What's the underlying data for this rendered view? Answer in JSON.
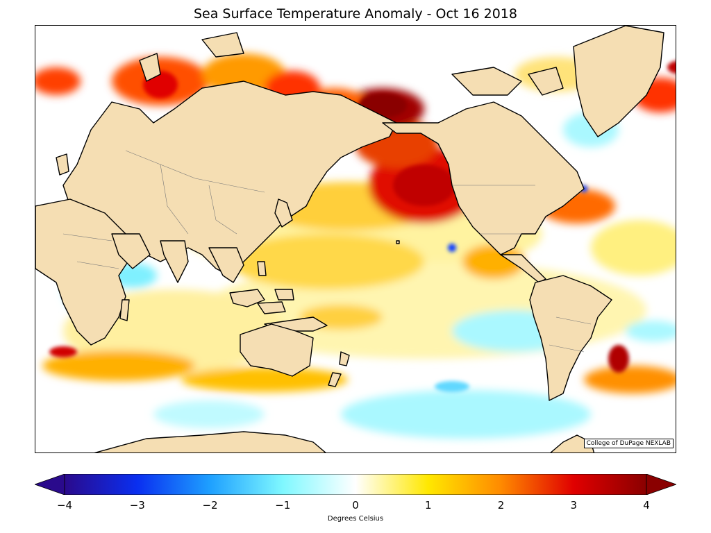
{
  "title": "Sea Surface Temperature Anomaly - Oct 16 2018",
  "credit": "College of DuPage NEXLAB",
  "colorbar": {
    "label": "Degrees Celsius",
    "min": -4,
    "max": 4,
    "ticks": [
      "−4",
      "−3",
      "−2",
      "−1",
      "0",
      "1",
      "2",
      "3",
      "4"
    ],
    "colors": [
      "#2a0a8c",
      "#0a2ff0",
      "#1ea0ff",
      "#7ff8ff",
      "#ffffff",
      "#ffe800",
      "#ff8a00",
      "#e00000",
      "#8a0000"
    ]
  },
  "map": {
    "land_color": "#f5deb3",
    "ocean_base": "#ffffff"
  }
}
